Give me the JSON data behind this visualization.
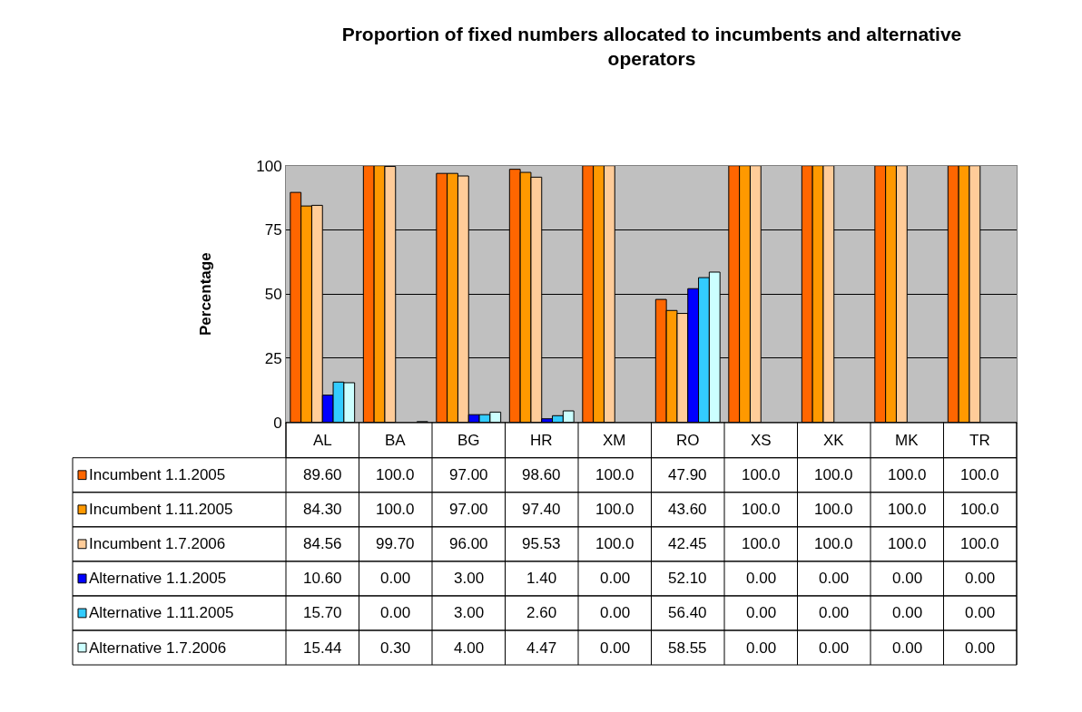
{
  "chart_data": {
    "type": "bar",
    "title": "Proportion of fixed numbers allocated to incumbents and alternative operators",
    "ylabel": "Percentage",
    "categories": [
      "AL",
      "BA",
      "BG",
      "HR",
      "XM",
      "RO",
      "XS",
      "XK",
      "MK",
      "TR"
    ],
    "series": [
      {
        "name": "Incumbent 1.1.2005",
        "color": "#ff6600",
        "values": [
          89.6,
          100.0,
          97.0,
          98.6,
          100.0,
          47.9,
          100.0,
          100.0,
          100.0,
          100.0
        ],
        "value_labels": [
          "89.60",
          "100.0",
          "97.00",
          "98.60",
          "100.0",
          "47.90",
          "100.0",
          "100.0",
          "100.0",
          "100.0"
        ]
      },
      {
        "name": "Incumbent 1.11.2005",
        "color": "#ff9900",
        "values": [
          84.3,
          100.0,
          97.0,
          97.4,
          100.0,
          43.6,
          100.0,
          100.0,
          100.0,
          100.0
        ],
        "value_labels": [
          "84.30",
          "100.0",
          "97.00",
          "97.40",
          "100.0",
          "43.60",
          "100.0",
          "100.0",
          "100.0",
          "100.0"
        ]
      },
      {
        "name": "Incumbent 1.7.2006",
        "color": "#ffcc99",
        "values": [
          84.56,
          99.7,
          96.0,
          95.53,
          100.0,
          42.45,
          100.0,
          100.0,
          100.0,
          100.0
        ],
        "value_labels": [
          "84.56",
          "99.70",
          "96.00",
          "95.53",
          "100.0",
          "42.45",
          "100.0",
          "100.0",
          "100.0",
          "100.0"
        ]
      },
      {
        "name": "Alternative 1.1.2005",
        "color": "#0000ff",
        "values": [
          10.6,
          0.0,
          3.0,
          1.4,
          0.0,
          52.1,
          0.0,
          0.0,
          0.0,
          0.0
        ],
        "value_labels": [
          "10.60",
          "0.00",
          "3.00",
          "1.40",
          "0.00",
          "52.10",
          "0.00",
          "0.00",
          "0.00",
          "0.00"
        ]
      },
      {
        "name": "Alternative 1.11.2005",
        "color": "#33ccff",
        "values": [
          15.7,
          0.0,
          3.0,
          2.6,
          0.0,
          56.4,
          0.0,
          0.0,
          0.0,
          0.0
        ],
        "value_labels": [
          "15.70",
          "0.00",
          "3.00",
          "2.60",
          "0.00",
          "56.40",
          "0.00",
          "0.00",
          "0.00",
          "0.00"
        ]
      },
      {
        "name": "Alternative 1.7.2006",
        "color": "#ccffff",
        "values": [
          15.44,
          0.3,
          4.0,
          4.47,
          0.0,
          58.55,
          0.0,
          0.0,
          0.0,
          0.0
        ],
        "value_labels": [
          "15.44",
          "0.30",
          "4.00",
          "4.47",
          "0.00",
          "58.55",
          "0.00",
          "0.00",
          "0.00",
          "0.00"
        ]
      }
    ],
    "ylim": [
      0,
      100
    ],
    "yticks": [
      0,
      25,
      50,
      75,
      100
    ],
    "grid": "y",
    "legend": "bottom"
  }
}
